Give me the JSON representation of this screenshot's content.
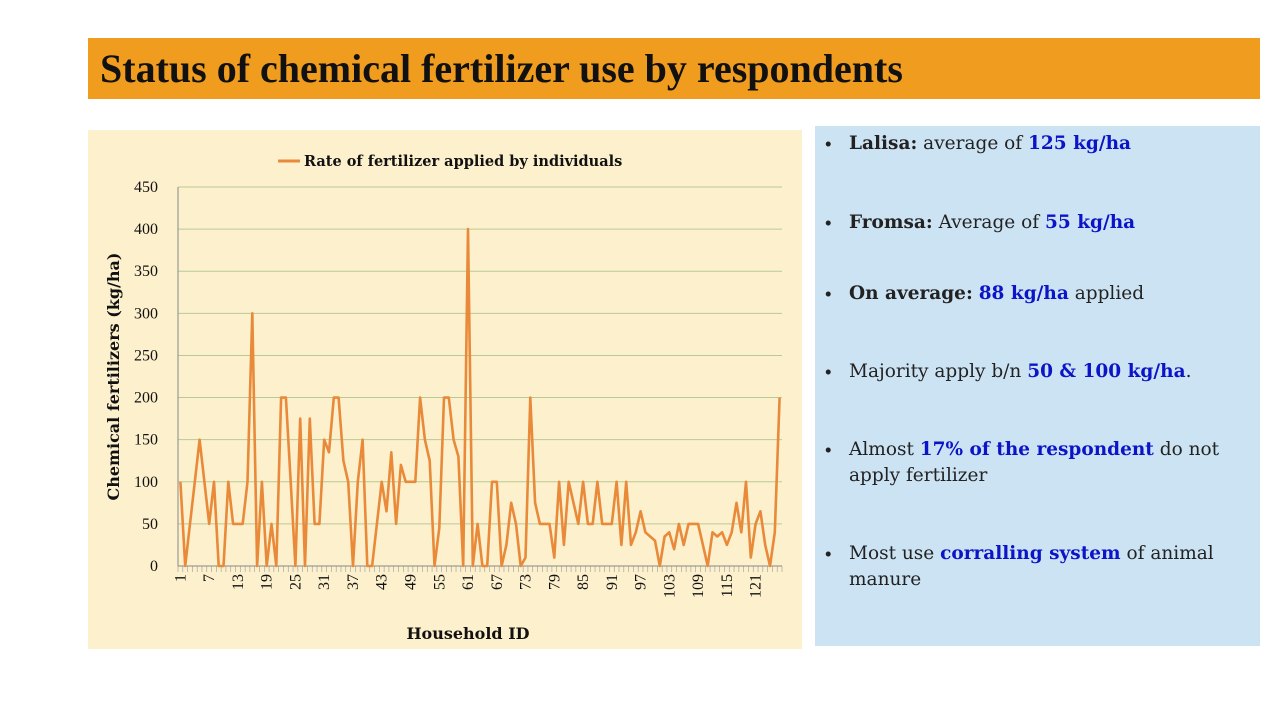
{
  "slide": {
    "title": "Status of chemical fertilizer use by respondents"
  },
  "bullets": [
    {
      "label": "Lalisa:",
      "text1": " average of ",
      "highlight": "125 kg/ha",
      "text2": ""
    },
    {
      "label": "Fromsa:",
      "text1": " Average of ",
      "highlight": "55 kg/ha",
      "text2": ""
    },
    {
      "label": "On average:",
      "text1": " ",
      "highlight": "88 kg/ha",
      "text2": " applied"
    },
    {
      "label": "",
      "text1": "Majority apply b/n ",
      "highlight": "50 & 100 kg/ha",
      "text2": "."
    },
    {
      "label": "",
      "text1": "Almost ",
      "highlight": "17% of the respondent",
      "text2": " do not apply fertilizer"
    },
    {
      "label": "",
      "text1": "Most use ",
      "highlight": "corralling system",
      "text2": " of animal manure"
    }
  ],
  "colors": {
    "title_bar": "#F09C1E",
    "chart_background": "#FDF0CD",
    "bullet_panel": "#CCE3F4",
    "series_line": "#E88A3A",
    "gridline": "#B9C994",
    "highlight_text": "#0C14C8"
  },
  "chart_data": {
    "type": "line",
    "legend": "Rate of fertilizer applied by individuals",
    "legend_position": "top",
    "xlabel": "Household ID",
    "ylabel": "Chemical fertilizers (kg/ha)",
    "ylim": [
      0,
      450
    ],
    "yticks": [
      0,
      50,
      100,
      150,
      200,
      250,
      300,
      350,
      400,
      450
    ],
    "xtick_labels": [
      "1",
      "7",
      "13",
      "19",
      "25",
      "31",
      "37",
      "43",
      "49",
      "55",
      "61",
      "67",
      "73",
      "79",
      "85",
      "91",
      "97",
      "103",
      "109",
      "115",
      "121"
    ],
    "grid": true,
    "series": [
      {
        "name": "Rate of fertilizer applied by individuals",
        "x_start": 1,
        "values": [
          100,
          0,
          50,
          100,
          150,
          100,
          50,
          100,
          0,
          0,
          100,
          50,
          50,
          50,
          100,
          300,
          0,
          100,
          0,
          50,
          0,
          200,
          200,
          100,
          0,
          175,
          0,
          175,
          50,
          50,
          150,
          135,
          200,
          200,
          125,
          100,
          0,
          100,
          150,
          0,
          0,
          50,
          100,
          65,
          135,
          50,
          120,
          100,
          100,
          100,
          200,
          150,
          125,
          0,
          45,
          200,
          200,
          150,
          130,
          0,
          400,
          0,
          50,
          0,
          0,
          100,
          100,
          0,
          25,
          75,
          50,
          0,
          10,
          200,
          75,
          50,
          50,
          50,
          10,
          100,
          25,
          100,
          75,
          50,
          100,
          50,
          50,
          100,
          50,
          50,
          50,
          100,
          25,
          100,
          25,
          40,
          65,
          40,
          35,
          30,
          0,
          35,
          40,
          20,
          50,
          25,
          50,
          50,
          50,
          25,
          0,
          40,
          35,
          40,
          25,
          40,
          75,
          40,
          100,
          10,
          50,
          65,
          25,
          0,
          40,
          200
        ]
      }
    ]
  }
}
